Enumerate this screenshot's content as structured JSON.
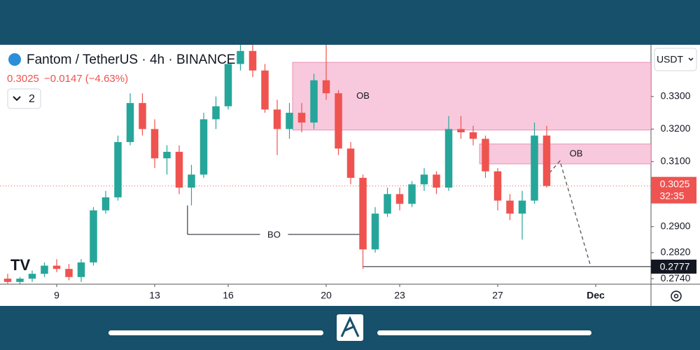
{
  "header": {
    "title": "Fantom / TetherUS · 4h · BINANCE",
    "last": "0.3025",
    "change": "−0.0147 (−4.63%)",
    "indicators": "2",
    "currency": "USDT",
    "logo": "TV"
  },
  "chart_data": {
    "type": "candlestick",
    "up_color": "#26a69a",
    "down_color": "#ef5350",
    "x": [
      7,
      7.5,
      8,
      8.5,
      9,
      9.5,
      10,
      10.5,
      11,
      11.5,
      12,
      12.5,
      13,
      13.5,
      14,
      14.5,
      15,
      15.5,
      16,
      16.5,
      17,
      17.5,
      18,
      18.5,
      19,
      19.5,
      20,
      20.5,
      21,
      21.5,
      22,
      22.5,
      23,
      23.5,
      24,
      24.5,
      25,
      25.5,
      26,
      26.5,
      27,
      27.5,
      28,
      28.5,
      29
    ],
    "open": [
      0.274,
      0.273,
      0.274,
      0.2755,
      0.278,
      0.277,
      0.2745,
      0.279,
      0.295,
      0.299,
      0.316,
      0.328,
      0.32,
      0.311,
      0.313,
      0.302,
      0.306,
      0.323,
      0.327,
      0.34,
      0.344,
      0.338,
      0.326,
      0.32,
      0.325,
      0.322,
      0.335,
      0.331,
      0.314,
      0.305,
      0.283,
      0.294,
      0.3,
      0.297,
      0.303,
      0.306,
      0.302,
      0.32,
      0.319,
      0.317,
      0.307,
      0.298,
      0.294,
      0.298,
      0.318
    ],
    "high": [
      0.2755,
      0.2745,
      0.2765,
      0.279,
      0.28,
      0.2785,
      0.28,
      0.296,
      0.301,
      0.318,
      0.331,
      0.331,
      0.323,
      0.315,
      0.315,
      0.309,
      0.325,
      0.33,
      0.342,
      0.346,
      0.346,
      0.34,
      0.329,
      0.328,
      0.328,
      0.337,
      0.3459,
      0.332,
      0.316,
      0.306,
      0.296,
      0.302,
      0.302,
      0.304,
      0.308,
      0.307,
      0.324,
      0.324,
      0.321,
      0.318,
      0.308,
      0.3,
      0.301,
      0.322,
      0.321
    ],
    "low": [
      0.2725,
      0.2724,
      0.273,
      0.2745,
      0.276,
      0.2735,
      0.273,
      0.278,
      0.294,
      0.298,
      0.315,
      0.318,
      0.308,
      0.306,
      0.3,
      0.2965,
      0.305,
      0.32,
      0.326,
      0.338,
      0.336,
      0.325,
      0.312,
      0.317,
      0.319,
      0.32,
      0.329,
      0.312,
      0.303,
      0.277,
      0.282,
      0.293,
      0.295,
      0.296,
      0.301,
      0.3,
      0.301,
      0.317,
      0.315,
      0.305,
      0.295,
      0.292,
      0.286,
      0.297,
      0.302
    ],
    "close": [
      0.273,
      0.274,
      0.2755,
      0.278,
      0.277,
      0.2745,
      0.279,
      0.295,
      0.299,
      0.316,
      0.328,
      0.32,
      0.311,
      0.313,
      0.302,
      0.306,
      0.323,
      0.327,
      0.34,
      0.344,
      0.338,
      0.326,
      0.32,
      0.325,
      0.322,
      0.335,
      0.331,
      0.314,
      0.305,
      0.283,
      0.294,
      0.3,
      0.297,
      0.303,
      0.306,
      0.302,
      0.32,
      0.319,
      0.317,
      0.307,
      0.298,
      0.294,
      0.298,
      0.318,
      0.3025
    ],
    "xlim": [
      6.686,
      33.257
    ],
    "xticks": [
      9,
      13,
      16,
      20,
      23,
      27,
      {
        "value": 31,
        "label": "Dec"
      }
    ],
    "ylim": [
      0.2723,
      0.3459
    ],
    "yticks": [
      {
        "value": 0.33,
        "label": "0.3300"
      },
      {
        "value": 0.32,
        "label": "0.3200"
      },
      {
        "value": 0.31,
        "label": "0.3100"
      },
      {
        "value": 0.29,
        "label": "0.2900"
      },
      {
        "value": 0.282,
        "label": "0.2820"
      },
      {
        "value": 0.274,
        "label": "0.2740"
      }
    ],
    "zones": [
      {
        "label": "OB",
        "x0": 18.63,
        "top": 0.3405,
        "bottom": 0.3197,
        "label_x": 21.5
      },
      {
        "label": "OB",
        "x0": 26.26,
        "top": 0.3154,
        "bottom": 0.3093,
        "label_x": 30.2
      }
    ],
    "break_line": {
      "label": "BO",
      "level": 0.2876,
      "x0": 14.34,
      "x1": 21.4,
      "from": 0.2965
    },
    "support": {
      "label": "0.2777",
      "level": 0.2777,
      "x0": 21.49
    },
    "projection": {
      "x": [
        29.11,
        29.54,
        30.8
      ],
      "y": [
        0.3065,
        0.3102,
        0.2777
      ]
    },
    "countdown": "32:35"
  }
}
